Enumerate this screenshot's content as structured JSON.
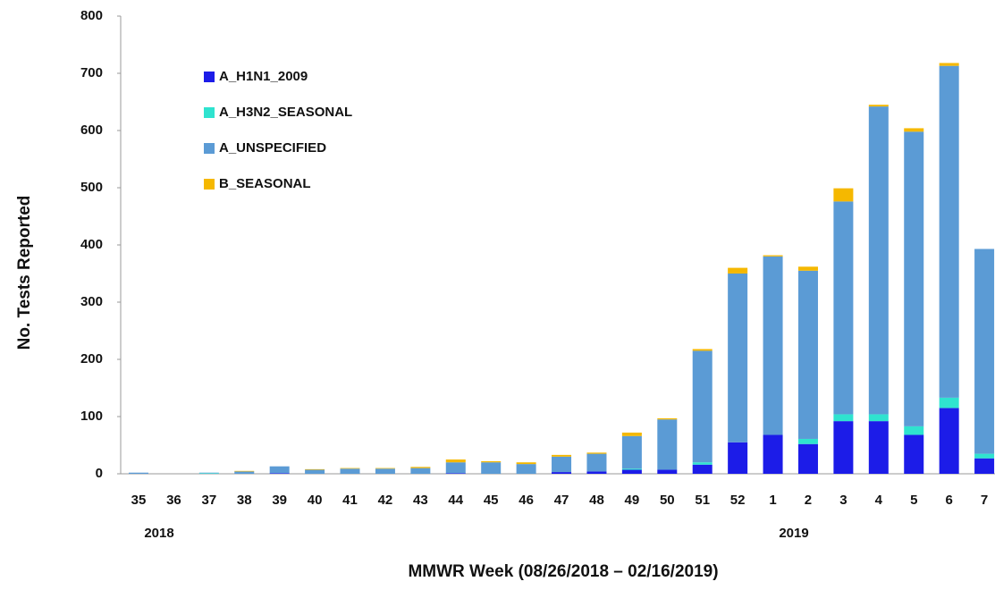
{
  "chart_data": {
    "type": "stacked_bar",
    "x_label": "MMWR Week (08/26/2018 – 02/16/2019)",
    "y_label": "No. Tests Reported",
    "categories": [
      "35",
      "36",
      "37",
      "38",
      "39",
      "40",
      "41",
      "42",
      "43",
      "44",
      "45",
      "46",
      "47",
      "48",
      "49",
      "50",
      "51",
      "52",
      "1",
      "2",
      "3",
      "4",
      "5",
      "6",
      "7"
    ],
    "year_labels": [
      "2018",
      "2019"
    ],
    "series": [
      {
        "name": "A_H1N1_2009",
        "color": "#1c1ce8",
        "values": [
          0,
          0,
          0,
          0,
          1,
          0,
          0,
          0,
          0,
          1,
          0,
          0,
          3,
          4,
          7,
          7,
          16,
          55,
          68,
          52,
          92,
          92,
          68,
          115,
          27
        ]
      },
      {
        "name": "A_H3N2_SEASONAL",
        "color": "#2fe3cf",
        "values": [
          0,
          0,
          1,
          0,
          0,
          0,
          0,
          0,
          0,
          0,
          0,
          0,
          0,
          0,
          2,
          0,
          4,
          0,
          0,
          9,
          12,
          12,
          15,
          18,
          8
        ]
      },
      {
        "name": "A_UNSPECIFIED",
        "color": "#5b9bd5",
        "values": [
          2,
          0,
          1,
          4,
          12,
          7,
          9,
          9,
          10,
          19,
          20,
          17,
          27,
          31,
          57,
          88,
          195,
          295,
          312,
          294,
          372,
          538,
          515,
          580,
          358
        ]
      },
      {
        "name": "B_SEASONAL",
        "color": "#f5b800",
        "values": [
          0,
          0,
          0,
          1,
          0,
          1,
          1,
          1,
          2,
          5,
          2,
          3,
          3,
          2,
          6,
          2,
          3,
          10,
          2,
          7,
          23,
          3,
          6,
          5,
          0
        ]
      }
    ],
    "ylim": [
      0,
      800
    ],
    "yticks": [
      0,
      100,
      200,
      300,
      400,
      500,
      600,
      700,
      800
    ]
  }
}
